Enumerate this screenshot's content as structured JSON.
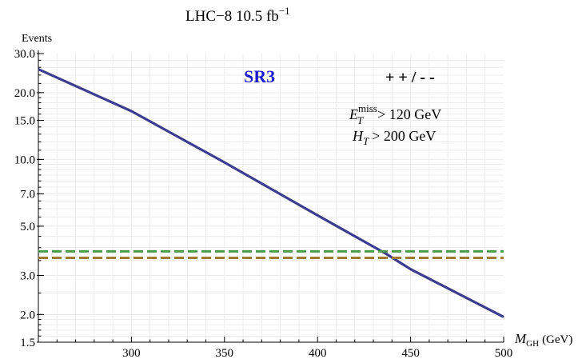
{
  "chart_data": {
    "type": "line",
    "title": "LHC−8   10.5 fb",
    "title_sup": "−1",
    "ylabel": "Events",
    "xlabel_main": "M",
    "xlabel_sub": "GH",
    "xlabel_unit": "(GeV)",
    "xlim": [
      250,
      500
    ],
    "ylim": [
      1.5,
      30.0
    ],
    "yscale": "log",
    "grid": true,
    "x_ticks": [
      300,
      350,
      400,
      450,
      500
    ],
    "x_tick_labels": [
      "300",
      "350",
      "400",
      "450",
      "500"
    ],
    "y_ticks": [
      1.5,
      2.0,
      3.0,
      5.0,
      7.0,
      10.0,
      15.0,
      20.0,
      30.0
    ],
    "y_tick_labels": [
      "1.5",
      "2.0",
      "3.0",
      "5.0",
      "7.0",
      "10.0",
      "15.0",
      "20.0",
      "30.0"
    ],
    "series": [
      {
        "color": "#3d3d8f",
        "style": "solid",
        "x": [
          250,
          300,
          350,
          400,
          437,
          450,
          500
        ],
        "y": [
          25.5,
          16.5,
          9.7,
          5.6,
          3.75,
          3.2,
          1.95
        ]
      },
      {
        "color": "#4a9a4a",
        "style": "dashed",
        "x": [
          250,
          500
        ],
        "y": [
          3.85,
          3.85
        ]
      },
      {
        "color": "#a07a35",
        "style": "dashed",
        "x": [
          250,
          500
        ],
        "y": [
          3.6,
          3.6
        ]
      }
    ],
    "annotations": {
      "sr_label": "SR3",
      "sr_color": "#1a1ad6",
      "charge_label": "+ + / - -",
      "cut1_main": "E",
      "cut1_sup": "miss",
      "cut1_sub": "T",
      "cut1_value": "> 120 GeV",
      "cut2_main": "H",
      "cut2_sub": "T",
      "cut2_value": "> 200 GeV"
    }
  }
}
